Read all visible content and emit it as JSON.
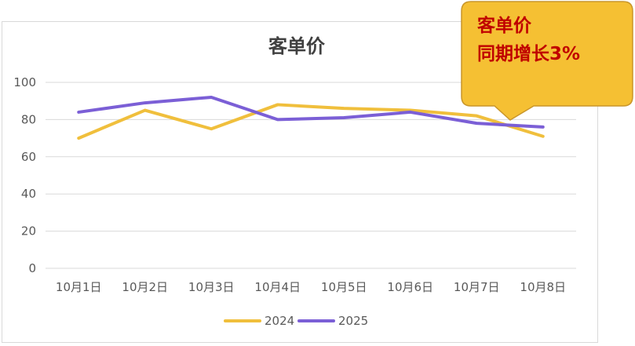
{
  "chart_data": {
    "type": "line",
    "title": "客单价",
    "categories": [
      "10月1日",
      "10月2日",
      "10月3日",
      "10月4日",
      "10月5日",
      "10月6日",
      "10月7日",
      "10月8日"
    ],
    "series": [
      {
        "name": "2024",
        "color": "#f0bf3c",
        "values": [
          70,
          85,
          75,
          88,
          86,
          85,
          82,
          71
        ]
      },
      {
        "name": "2025",
        "color": "#7b5fd6",
        "values": [
          84,
          89,
          92,
          80,
          81,
          84,
          78,
          76
        ]
      }
    ],
    "ylim": [
      0,
      100
    ],
    "yticks": [
      0,
      20,
      40,
      60,
      80,
      100
    ],
    "grid": true,
    "legend": "bottom"
  },
  "callout": {
    "line1": "客单价",
    "line2": "同期增长3%",
    "fill": "#f5c033",
    "border": "#c9962a",
    "text_color": "#c00000"
  }
}
